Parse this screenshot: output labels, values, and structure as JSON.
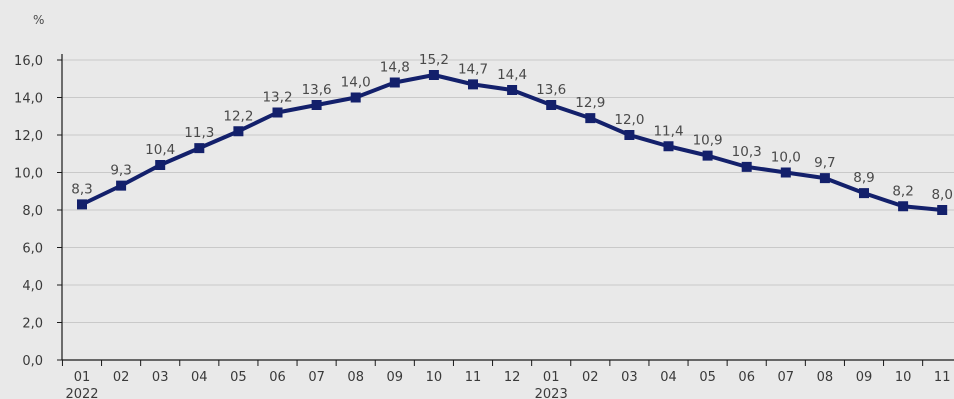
{
  "chart_data": {
    "type": "line",
    "unit_label": "%",
    "categories": [
      "01",
      "02",
      "03",
      "04",
      "05",
      "06",
      "07",
      "08",
      "09",
      "10",
      "11",
      "12",
      "01",
      "02",
      "03",
      "04",
      "05",
      "06",
      "07",
      "08",
      "09",
      "10",
      "11"
    ],
    "year_labels": [
      {
        "index": 0,
        "label": "2022"
      },
      {
        "index": 12,
        "label": "2023"
      }
    ],
    "values": [
      8.3,
      9.3,
      10.4,
      11.3,
      12.2,
      13.2,
      13.6,
      14.0,
      14.8,
      15.2,
      14.7,
      14.4,
      13.6,
      12.9,
      12.0,
      11.4,
      10.9,
      10.3,
      10.0,
      9.7,
      8.9,
      8.2,
      8.0
    ],
    "data_labels": [
      "8,3",
      "9,3",
      "10,4",
      "11,3",
      "12,2",
      "13,2",
      "13,6",
      "14,0",
      "14,8",
      "15,2",
      "14,7",
      "14,4",
      "13,6",
      "12,9",
      "12,0",
      "11,4",
      "10,9",
      "10,3",
      "10,0",
      "9,7",
      "8,9",
      "8,2",
      "8,0"
    ],
    "yticks": [
      0,
      2,
      4,
      6,
      8,
      10,
      12,
      14,
      16
    ],
    "ytick_labels": [
      "0,0",
      "2,0",
      "4,0",
      "6,0",
      "8,0",
      "10,0",
      "12,0",
      "14,0",
      "16,0"
    ],
    "ylim": [
      0,
      16
    ],
    "grid": true,
    "colors": {
      "line": "#13206b",
      "grid": "#c9c9c9",
      "axis": "#1a1a1a",
      "background": "#e9e9e9"
    }
  }
}
